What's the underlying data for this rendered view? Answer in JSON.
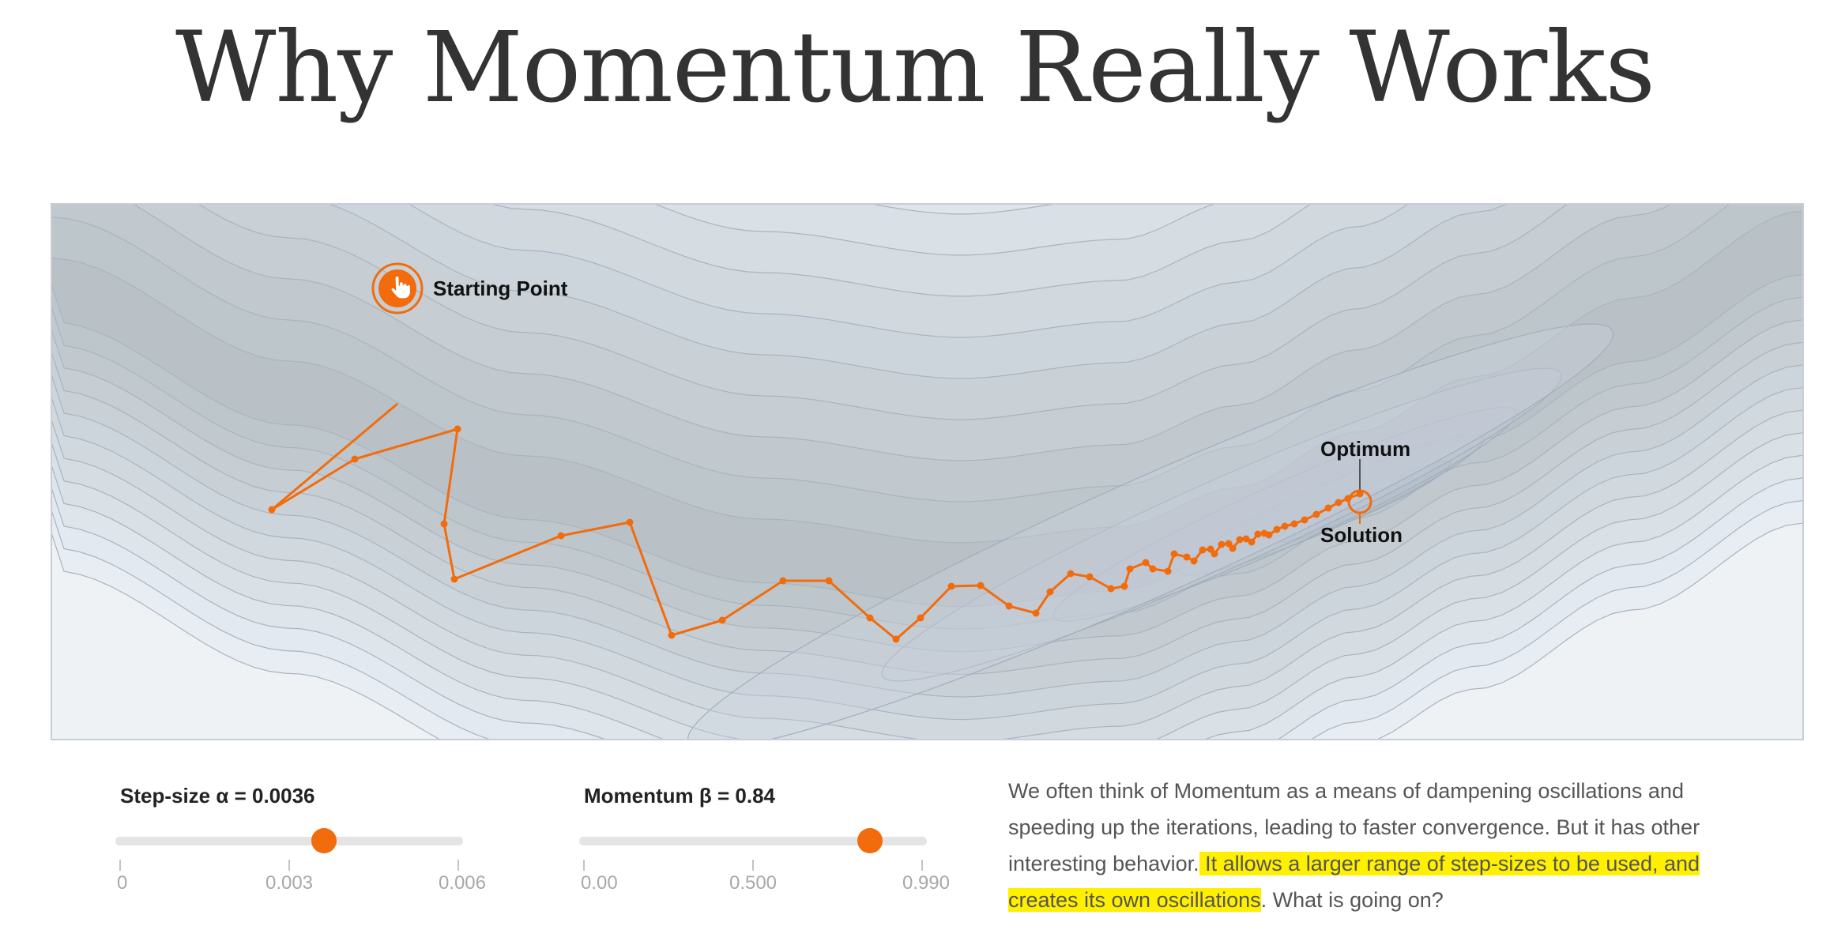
{
  "article": {
    "title": "Why Momentum Really Works"
  },
  "visualization": {
    "labels": {
      "start": "Starting Point",
      "optimum": "Optimum",
      "solution": "Solution"
    },
    "colors": {
      "path": "#f26c0d",
      "background": "#eef2f5",
      "contour_line": "#a9b4c0"
    },
    "start_icon": "hand-pointer-icon"
  },
  "controls": {
    "step_size": {
      "label": "Step-size α = 0.0036",
      "value": 0.0036,
      "min": 0,
      "max": 0.006,
      "ticks": [
        "0",
        "0.003",
        "0.006"
      ]
    },
    "momentum": {
      "label": "Momentum β = 0.84",
      "value": 0.84,
      "min": 0,
      "max": 0.99,
      "ticks": [
        "0.00",
        "0.500",
        "0.990"
      ]
    }
  },
  "description": {
    "part1": "We often think of Momentum as a means of dampening oscillations and speeding up the iterations, leading to faster convergence. But it has other interesting behavior.",
    "highlight": " It allows a larger range of step-sizes to be used, and creates its own oscillations",
    "part2": ". What is going on?"
  }
}
